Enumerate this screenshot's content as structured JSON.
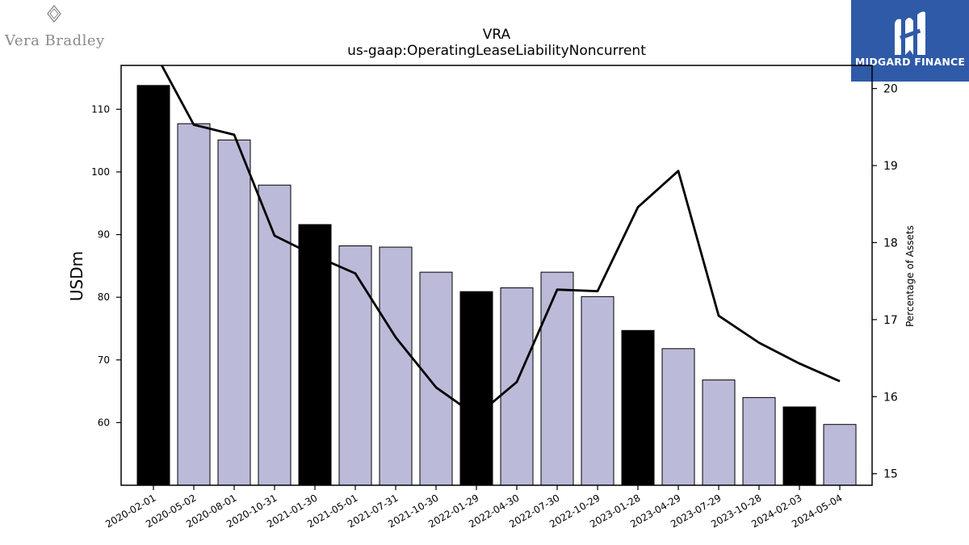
{
  "header": {
    "left_logo_text": "Vera Bradley",
    "left_logo_icon": "vb-diamond-icon",
    "right_logo_text": "MIDGARD FINANCE",
    "right_logo_icon": "midgard-m-icon",
    "right_logo_bg": "#2f5aa8"
  },
  "chart_data": {
    "type": "bar",
    "title": "VRA",
    "subtitle": "us-gaap:OperatingLeaseLiabilityNoncurrent",
    "ylabel": "USDm",
    "y2label": "Percentage of Assets",
    "ylim": [
      50,
      117
    ],
    "y2lim": [
      14.85,
      20.3
    ],
    "yticks": [
      60,
      70,
      80,
      90,
      100,
      110
    ],
    "y2ticks": [
      15,
      16,
      17,
      18,
      19,
      20
    ],
    "categories": [
      "2020-02-01",
      "2020-05-02",
      "2020-08-01",
      "2020-10-31",
      "2021-01-30",
      "2021-05-01",
      "2021-07-31",
      "2021-10-30",
      "2022-01-29",
      "2022-04-30",
      "2022-07-30",
      "2022-10-29",
      "2023-01-28",
      "2023-04-29",
      "2023-07-29",
      "2023-10-28",
      "2024-02-03",
      "2024-05-04"
    ],
    "series": [
      {
        "type": "bar",
        "axis": "left",
        "values": [
          113.8,
          107.7,
          105.1,
          97.9,
          91.6,
          88.2,
          88.0,
          84.0,
          80.9,
          81.5,
          84.0,
          80.1,
          74.7,
          71.8,
          66.8,
          64.0,
          62.5,
          59.7
        ],
        "highlight": [
          true,
          false,
          false,
          false,
          true,
          false,
          false,
          false,
          true,
          false,
          false,
          false,
          true,
          false,
          false,
          false,
          true,
          false
        ]
      },
      {
        "type": "line",
        "axis": "right",
        "values": [
          20.5,
          19.53,
          19.4,
          18.09,
          17.83,
          17.6,
          16.77,
          16.12,
          15.75,
          16.19,
          17.39,
          17.37,
          18.46,
          18.93,
          17.05,
          16.7,
          16.43,
          16.2
        ]
      }
    ],
    "colors": {
      "bar": "#bcbad9",
      "bar_highlight": "#000000",
      "line": "#000000"
    },
    "grid": false,
    "legend": "none"
  }
}
